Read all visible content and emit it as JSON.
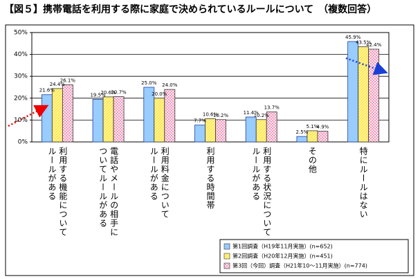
{
  "chart_data": {
    "type": "bar",
    "title": "【図５】携帯電話を利用する際に家庭で決められているルールについて　（複数回答）",
    "categories": [
      "利用する機能について\nルールがある",
      "電話やメールの相手に\nついてルールがある",
      "利用料金について\nルールがある",
      "利用する時間帯",
      "利用する状況について\nルールがある",
      "その他",
      "特にルールはない"
    ],
    "series": [
      {
        "name": "第1回調査（H19年11月実施）(n=652)",
        "color": "#99ccff",
        "hatch": "solid",
        "values": [
          21.6,
          19.5,
          25.0,
          7.7,
          11.4,
          2.5,
          45.9
        ],
        "value_labels": [
          "21.6%",
          "19.5%",
          "25.0%",
          "7.7%",
          "11.4%",
          "2.5%",
          "45.9%"
        ]
      },
      {
        "name": "第2回調査（H20年12月実施）(n=451)",
        "color": "#ffe640",
        "hatch": "diagonal",
        "values": [
          24.4,
          20.6,
          20.0,
          10.6,
          10.2,
          5.1,
          43.5
        ],
        "value_labels": [
          "24.4%",
          "20.6%",
          "20.0%",
          "10.6%",
          "10.2%",
          "5.1%",
          "43.5%"
        ]
      },
      {
        "name": "第3回（今回）調査（H21年10～11月実施）(n=774)",
        "color": "#f08cb4",
        "hatch": "crosshatch",
        "values": [
          26.1,
          20.7,
          24.0,
          10.2,
          13.7,
          4.9,
          42.4
        ],
        "value_labels": [
          "26.1%",
          "20.7%",
          "24.0%",
          "10.2%",
          "13.7%",
          "4.9%",
          "42.4%"
        ]
      }
    ],
    "ylim": [
      0,
      50
    ],
    "yticks": [
      {
        "value": 0,
        "label": "0%"
      },
      {
        "value": 10,
        "label": "10%"
      },
      {
        "value": 20,
        "label": "20%"
      },
      {
        "value": 30,
        "label": "30%"
      },
      {
        "value": 40,
        "label": "40%"
      },
      {
        "value": 50,
        "label": "50%"
      }
    ],
    "grid": true
  }
}
